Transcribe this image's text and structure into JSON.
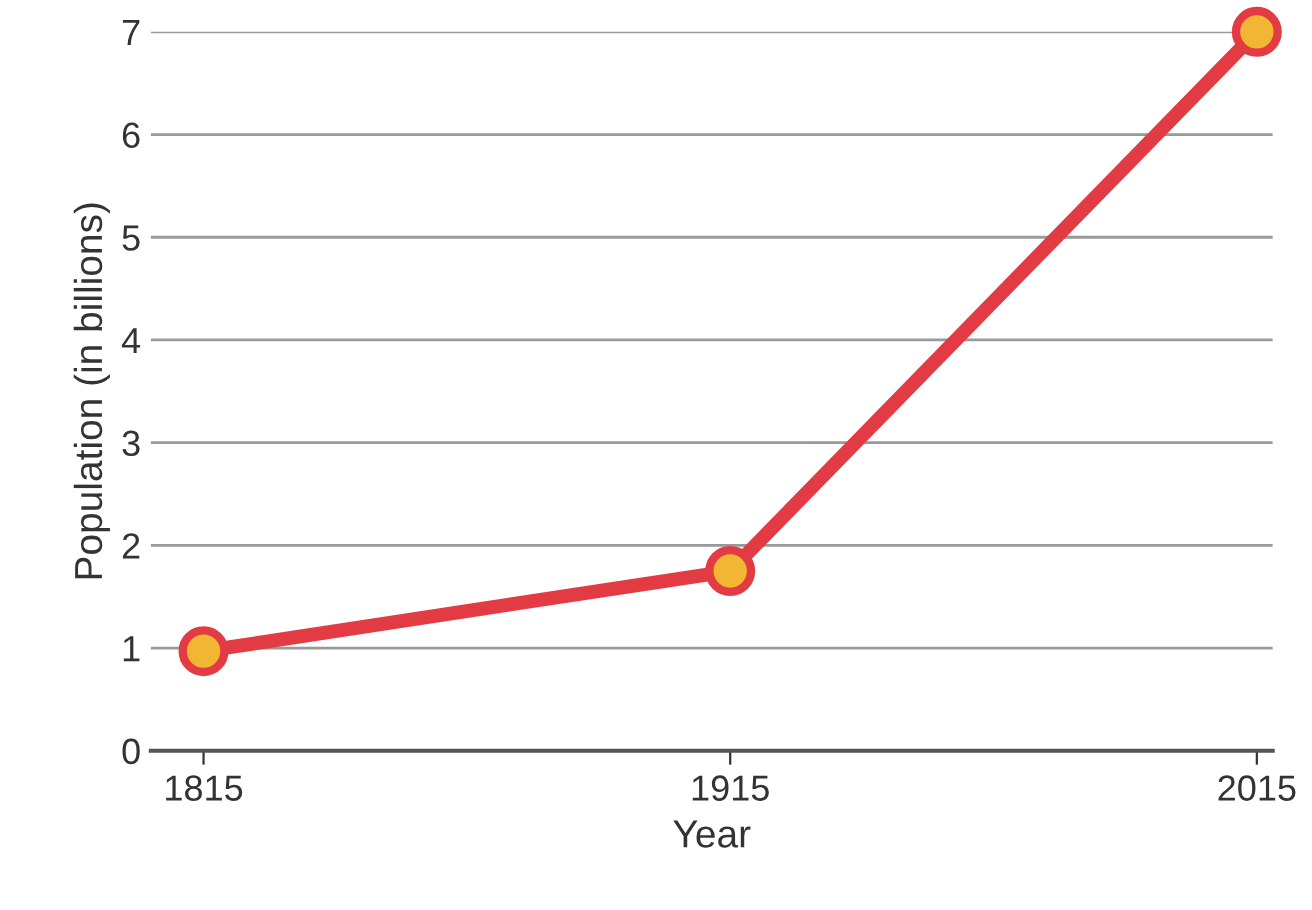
{
  "chart_data": {
    "type": "line",
    "xlabel": "Year",
    "ylabel": "Population (in billions)",
    "x": [
      1815,
      1915,
      2015
    ],
    "series": [
      {
        "color": "#e23b43",
        "values": [
          0.97,
          1.75,
          7.0
        ]
      }
    ],
    "xlim": [
      1805,
      2018
    ],
    "xticks": [
      1815,
      1915,
      2015
    ],
    "ylim": [
      0,
      7
    ],
    "yticks": [
      0,
      1,
      2,
      3,
      4,
      5,
      6,
      7
    ],
    "grid": "y",
    "marker": "circle",
    "line_style": "solid"
  }
}
